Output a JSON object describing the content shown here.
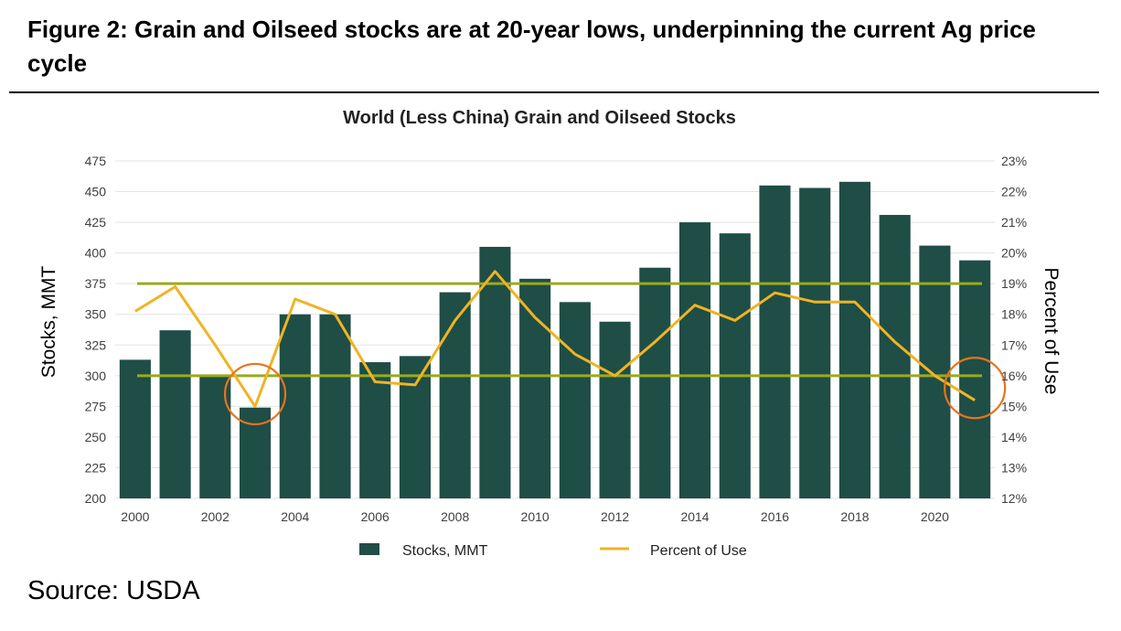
{
  "figure": {
    "title": "Figure 2: Grain and Oilseed stocks are at 20-year lows, underpinning the current Ag price cycle",
    "source": "Source: USDA"
  },
  "chart_data": {
    "type": "bar",
    "title": "World (Less China) Grain and Oilseed Stocks",
    "ylabel": "Stocks, MMT",
    "y2label": "Percent of Use",
    "ylim": [
      200,
      475
    ],
    "y2lim": [
      12,
      23
    ],
    "y_ticks": [
      "200",
      "225",
      "250",
      "275",
      "300",
      "325",
      "350",
      "375",
      "400",
      "425",
      "450",
      "475"
    ],
    "y2_ticks": [
      "12%",
      "13%",
      "14%",
      "15%",
      "16%",
      "17%",
      "18%",
      "19%",
      "20%",
      "21%",
      "22%",
      "23%"
    ],
    "x_ticks": [
      "2000",
      "2002",
      "2004",
      "2006",
      "2008",
      "2010",
      "2012",
      "2014",
      "2016",
      "2018",
      "2020"
    ],
    "categories": [
      2000,
      2001,
      2002,
      2003,
      2004,
      2005,
      2006,
      2007,
      2008,
      2009,
      2010,
      2011,
      2012,
      2013,
      2014,
      2015,
      2016,
      2017,
      2018,
      2019,
      2020,
      2021
    ],
    "series": [
      {
        "name": "Stocks, MMT",
        "kind": "bar",
        "axis": "left",
        "color": "#1f4e46",
        "values": [
          313,
          337,
          301,
          274,
          350,
          350,
          311,
          316,
          368,
          405,
          379,
          360,
          344,
          388,
          425,
          416,
          455,
          453,
          458,
          431,
          406,
          394
        ]
      },
      {
        "name": "Percent of Use",
        "kind": "line",
        "axis": "right",
        "color": "#f0b323",
        "values": [
          18.1,
          18.9,
          17.0,
          15.0,
          18.5,
          18.0,
          15.8,
          15.7,
          17.8,
          19.4,
          17.9,
          16.7,
          16.0,
          17.1,
          18.3,
          17.8,
          18.7,
          18.4,
          18.4,
          17.1,
          16.0,
          15.2
        ]
      }
    ],
    "reference_lines": [
      {
        "axis": "right",
        "value": 19,
        "color": "#9aaa1e"
      },
      {
        "axis": "right",
        "value": 16,
        "color": "#9aaa1e"
      }
    ],
    "highlight_circles": [
      {
        "x": 2003,
        "y2": 15.4,
        "color": "#e8731f"
      },
      {
        "x": 2021,
        "y2": 15.6,
        "color": "#e8731f"
      }
    ],
    "grid": "horizontal",
    "legend_position": "bottom"
  }
}
